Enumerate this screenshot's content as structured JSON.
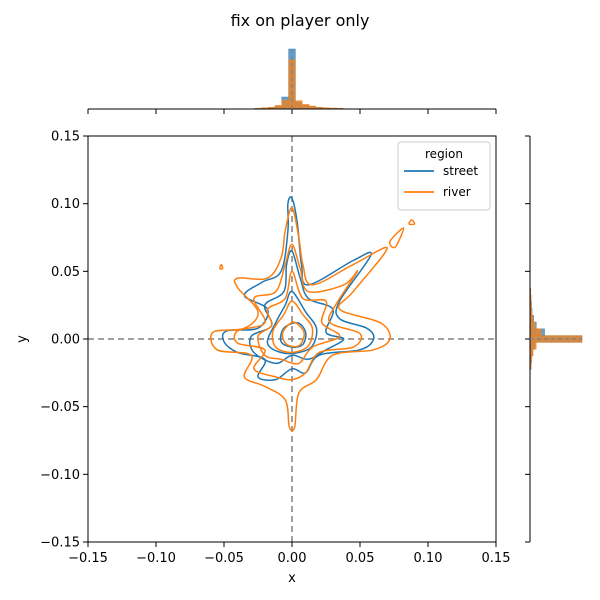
{
  "chart_data": {
    "type": "kde-contour-joint",
    "title": "fix on player only",
    "xlabel": "x",
    "ylabel": "y",
    "xlim": [
      -0.15,
      0.15
    ],
    "ylim": [
      -0.15,
      0.15
    ],
    "xticks": [
      -0.15,
      -0.1,
      -0.05,
      0.0,
      0.05,
      0.1,
      0.15
    ],
    "yticks": [
      -0.15,
      -0.1,
      -0.05,
      0.0,
      0.05,
      0.1,
      0.15
    ],
    "xtick_labels": [
      "−0.15",
      "−0.10",
      "−0.05",
      "0.00",
      "0.05",
      "0.10",
      "0.15"
    ],
    "ytick_labels": [
      "−0.15",
      "−0.10",
      "−0.05",
      "0.00",
      "0.05",
      "0.10",
      "0.15"
    ],
    "reference_lines": {
      "x": 0,
      "y": 0,
      "style": "dashed",
      "color": "#808080"
    },
    "legend": {
      "title": "region",
      "placement": "top-right"
    },
    "series": [
      {
        "name": "street",
        "color": "#1f77b4",
        "contours": [
          [
            [
              0,
              0.104
            ],
            [
              0.004,
              0.085
            ],
            [
              0.007,
              0.055
            ],
            [
              0.012,
              0.04
            ],
            [
              0.045,
              0.058
            ],
            [
              0.058,
              0.062
            ],
            [
              0.035,
              0.028
            ],
            [
              0.035,
              0.015
            ],
            [
              0.055,
              0.008
            ],
            [
              0.06,
              0.0
            ],
            [
              0.05,
              -0.008
            ],
            [
              0.02,
              -0.012
            ],
            [
              0.01,
              -0.025
            ],
            [
              0.0,
              -0.022
            ],
            [
              -0.012,
              -0.03
            ],
            [
              -0.025,
              -0.028
            ],
            [
              -0.02,
              -0.015
            ],
            [
              -0.04,
              -0.01
            ],
            [
              -0.05,
              -0.002
            ],
            [
              -0.048,
              0.006
            ],
            [
              -0.025,
              0.008
            ],
            [
              -0.018,
              0.022
            ],
            [
              -0.035,
              0.032
            ],
            [
              -0.022,
              0.042
            ],
            [
              -0.008,
              0.05
            ],
            [
              -0.003,
              0.08
            ],
            [
              -0.003,
              0.1
            ]
          ],
          [
            [
              0,
              0.065
            ],
            [
              0.006,
              0.045
            ],
            [
              0.012,
              0.03
            ],
            [
              0.03,
              0.022
            ],
            [
              0.025,
              0.005
            ],
            [
              0.038,
              0.0
            ],
            [
              0.025,
              -0.008
            ],
            [
              0.012,
              -0.015
            ],
            [
              0.0,
              -0.012
            ],
            [
              -0.012,
              -0.018
            ],
            [
              -0.028,
              -0.01
            ],
            [
              -0.03,
              0.002
            ],
            [
              -0.015,
              0.01
            ],
            [
              -0.02,
              0.025
            ],
            [
              -0.006,
              0.035
            ],
            [
              -0.004,
              0.055
            ]
          ],
          [
            [
              0,
              0.035
            ],
            [
              0.01,
              0.02
            ],
            [
              0.018,
              0.008
            ],
            [
              0.015,
              -0.005
            ],
            [
              0.005,
              -0.01
            ],
            [
              -0.008,
              -0.01
            ],
            [
              -0.018,
              -0.003
            ],
            [
              -0.012,
              0.012
            ],
            [
              -0.005,
              0.025
            ]
          ],
          [
            [
              0.004,
              0.012
            ],
            [
              0.01,
              0.005
            ],
            [
              0.008,
              -0.004
            ],
            [
              0.0,
              -0.006
            ],
            [
              -0.008,
              -0.002
            ],
            [
              -0.006,
              0.008
            ]
          ]
        ],
        "marginal_x": {
          "bin_width": 0.005,
          "bin_centers": [
            -0.025,
            -0.02,
            -0.015,
            -0.01,
            -0.005,
            0.0,
            0.005,
            0.01,
            0.015,
            0.02,
            0.025,
            0.03,
            0.035
          ],
          "density": [
            0.01,
            0.02,
            0.03,
            0.05,
            0.2,
            1.0,
            0.12,
            0.06,
            0.04,
            0.03,
            0.02,
            0.015,
            0.01
          ]
        },
        "marginal_y": {
          "bin_width": 0.005,
          "bin_centers": [
            -0.02,
            -0.015,
            -0.01,
            -0.005,
            0.0,
            0.005,
            0.01,
            0.015,
            0.02,
            0.025,
            0.03,
            0.035
          ],
          "density": [
            0.02,
            0.03,
            0.05,
            0.1,
            1.0,
            0.28,
            0.12,
            0.07,
            0.04,
            0.03,
            0.02,
            0.015
          ]
        }
      },
      {
        "name": "river",
        "color": "#ff7f0e",
        "contours": [
          [
            [
              0.0,
              0.097
            ],
            [
              0.005,
              0.075
            ],
            [
              0.008,
              0.055
            ],
            [
              0.015,
              0.04
            ],
            [
              0.045,
              0.055
            ],
            [
              0.07,
              0.067
            ],
            [
              0.045,
              0.035
            ],
            [
              0.035,
              0.022
            ],
            [
              0.065,
              0.012
            ],
            [
              0.072,
              0.0
            ],
            [
              0.06,
              -0.008
            ],
            [
              0.03,
              -0.012
            ],
            [
              0.018,
              -0.03
            ],
            [
              0.005,
              -0.04
            ],
            [
              0.002,
              -0.065
            ],
            [
              -0.002,
              -0.065
            ],
            [
              -0.005,
              -0.045
            ],
            [
              -0.02,
              -0.035
            ],
            [
              -0.035,
              -0.028
            ],
            [
              -0.03,
              -0.012
            ],
            [
              -0.055,
              -0.008
            ],
            [
              -0.058,
              0.005
            ],
            [
              -0.035,
              0.008
            ],
            [
              -0.025,
              0.02
            ],
            [
              -0.04,
              0.038
            ],
            [
              -0.04,
              0.045
            ],
            [
              -0.018,
              0.045
            ],
            [
              -0.008,
              0.06
            ],
            [
              -0.005,
              0.08
            ]
          ],
          [
            [
              0.0,
              0.07
            ],
            [
              0.006,
              0.052
            ],
            [
              0.012,
              0.035
            ],
            [
              0.038,
              0.04
            ],
            [
              0.048,
              0.05
            ],
            [
              0.032,
              0.025
            ],
            [
              0.028,
              0.012
            ],
            [
              0.05,
              0.004
            ],
            [
              0.045,
              -0.006
            ],
            [
              0.02,
              -0.01
            ],
            [
              0.01,
              -0.025
            ],
            [
              0.0,
              -0.03
            ],
            [
              -0.012,
              -0.028
            ],
            [
              -0.028,
              -0.022
            ],
            [
              -0.02,
              -0.008
            ],
            [
              -0.04,
              -0.003
            ],
            [
              -0.04,
              0.006
            ],
            [
              -0.02,
              0.012
            ],
            [
              -0.028,
              0.03
            ],
            [
              -0.012,
              0.035
            ],
            [
              -0.005,
              0.055
            ]
          ],
          [
            [
              0.0,
              0.05
            ],
            [
              0.008,
              0.03
            ],
            [
              0.025,
              0.028
            ],
            [
              0.022,
              0.012
            ],
            [
              0.035,
              0.002
            ],
            [
              0.015,
              -0.006
            ],
            [
              0.005,
              -0.018
            ],
            [
              -0.008,
              -0.015
            ],
            [
              -0.02,
              -0.012
            ],
            [
              -0.025,
              0.002
            ],
            [
              -0.015,
              0.01
            ],
            [
              -0.018,
              0.022
            ],
            [
              -0.005,
              0.03
            ]
          ],
          [
            [
              0.0,
              0.028
            ],
            [
              0.008,
              0.018
            ],
            [
              0.015,
              0.008
            ],
            [
              0.012,
              -0.005
            ],
            [
              0.0,
              -0.01
            ],
            [
              -0.012,
              -0.006
            ],
            [
              -0.014,
              0.006
            ],
            [
              -0.006,
              0.018
            ]
          ],
          [
            [
              0.003,
              0.012
            ],
            [
              0.009,
              0.004
            ],
            [
              0.005,
              -0.005
            ],
            [
              -0.004,
              -0.004
            ],
            [
              -0.007,
              0.004
            ],
            [
              -0.002,
              0.011
            ]
          ],
          [
            [
              0.088,
              0.088
            ],
            [
              0.086,
              0.085
            ],
            [
              0.09,
              0.085
            ]
          ],
          [
            [
              0.082,
              0.082
            ],
            [
              0.072,
              0.072
            ],
            [
              0.076,
              0.068
            ]
          ],
          [
            [
              -0.052,
              0.055
            ],
            [
              -0.053,
              0.052
            ],
            [
              -0.051,
              0.052
            ]
          ]
        ],
        "marginal_x": {
          "bin_width": 0.005,
          "bin_centers": [
            -0.025,
            -0.02,
            -0.015,
            -0.01,
            -0.005,
            0.0,
            0.005,
            0.01,
            0.015,
            0.02,
            0.025,
            0.03,
            0.035
          ],
          "density": [
            0.01,
            0.02,
            0.03,
            0.06,
            0.15,
            0.82,
            0.14,
            0.08,
            0.05,
            0.03,
            0.02,
            0.015,
            0.01
          ]
        },
        "marginal_y": {
          "bin_width": 0.005,
          "bin_centers": [
            -0.02,
            -0.015,
            -0.01,
            -0.005,
            0.0,
            0.005,
            0.01,
            0.015,
            0.02,
            0.025,
            0.03,
            0.035
          ],
          "density": [
            0.02,
            0.03,
            0.06,
            0.12,
            1.0,
            0.22,
            0.1,
            0.06,
            0.035,
            0.025,
            0.02,
            0.012
          ]
        }
      }
    ]
  }
}
